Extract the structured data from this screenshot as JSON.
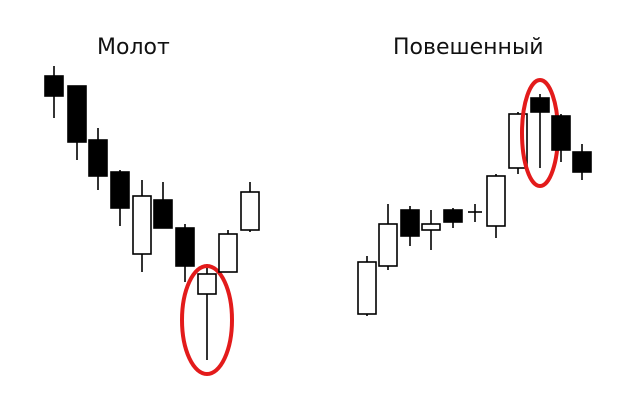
{
  "colors": {
    "background": "#ffffff",
    "bullish_fill": "#ffffff",
    "bearish_fill": "#000000",
    "outline": "#000000",
    "highlight": "#e31b1b"
  },
  "panels": [
    {
      "title": "Молот",
      "pattern": "hammer",
      "candles": [
        {
          "dir": "bear"
        },
        {
          "dir": "bear"
        },
        {
          "dir": "bear"
        },
        {
          "dir": "bear"
        },
        {
          "dir": "bull"
        },
        {
          "dir": "bear"
        },
        {
          "dir": "bear"
        },
        {
          "dir": "bull",
          "highlighted": true
        },
        {
          "dir": "bull"
        },
        {
          "dir": "bull"
        }
      ]
    },
    {
      "title": "Повешенный",
      "pattern": "hanging-man",
      "candles": [
        {
          "dir": "bull"
        },
        {
          "dir": "bull"
        },
        {
          "dir": "bear"
        },
        {
          "dir": "bull"
        },
        {
          "dir": "bear"
        },
        {
          "dir": "doji"
        },
        {
          "dir": "bull"
        },
        {
          "dir": "bull"
        },
        {
          "dir": "bear",
          "highlighted": true
        },
        {
          "dir": "bear"
        },
        {
          "dir": "bear"
        }
      ]
    }
  ]
}
